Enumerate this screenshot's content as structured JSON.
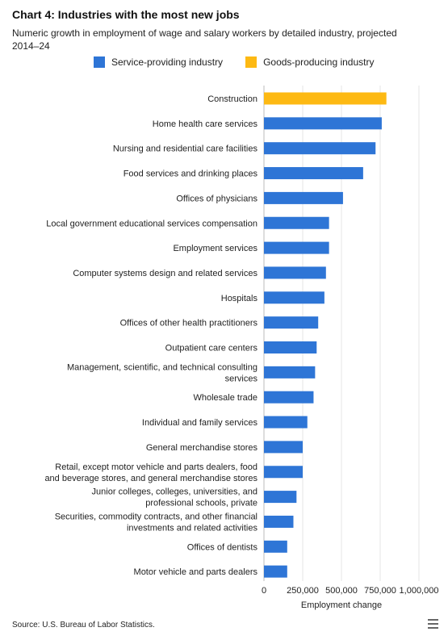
{
  "colors": {
    "service": "#2E75D6",
    "goods": "#FDB913",
    "grid": "#e6e6e6",
    "axis": "#bbbbbb",
    "text": "#222222"
  },
  "legend": {
    "service_label": "Service-providing industry",
    "goods_label": "Goods-producing industry"
  },
  "source": "Source: U.S. Bureau of Labor Statistics.",
  "menu_icon": "hamburger-menu-icon",
  "chart_data": {
    "type": "bar",
    "orientation": "horizontal",
    "title": "Chart 4: Industries with the most new jobs",
    "subtitle": "Numeric growth in employment of wage and salary workers by detailed industry, projected 2014–24",
    "xlabel": "Employment change",
    "ylabel": "",
    "xlim": [
      0,
      1000000
    ],
    "xticks": [
      0,
      250000,
      500000,
      750000,
      1000000
    ],
    "xtick_labels": [
      "0",
      "250,000",
      "500,000",
      "750,000",
      "1,000,000"
    ],
    "grid": "vertical",
    "legend_position": "top",
    "series": [
      {
        "name": "Service-providing industry"
      },
      {
        "name": "Goods-producing industry"
      }
    ],
    "categories": [
      [
        "Construction"
      ],
      [
        "Home health care services"
      ],
      [
        "Nursing and residential care facilities"
      ],
      [
        "Food services and drinking places"
      ],
      [
        "Offices of physicians"
      ],
      [
        "Local government educational services compensation"
      ],
      [
        "Employment services"
      ],
      [
        "Computer systems design and related services"
      ],
      [
        "Hospitals"
      ],
      [
        "Offices of other health practitioners"
      ],
      [
        "Outpatient care centers"
      ],
      [
        "Management, scientific, and technical consulting",
        "services"
      ],
      [
        "Wholesale trade"
      ],
      [
        "Individual and family services"
      ],
      [
        "General merchandise stores"
      ],
      [
        "Retail, except motor vehicle and parts dealers, food",
        "and beverage stores, and general merchandise stores"
      ],
      [
        "Junior colleges, colleges, universities, and",
        "professional schools, private"
      ],
      [
        "Securities, commodity contracts, and other financial",
        "investments and related activities"
      ],
      [
        "Offices of dentists"
      ],
      [
        "Motor vehicle and parts dealers"
      ]
    ],
    "values": [
      790000,
      760000,
      720000,
      640000,
      510000,
      420000,
      420000,
      400000,
      390000,
      350000,
      340000,
      330000,
      320000,
      280000,
      250000,
      250000,
      210000,
      190000,
      150000,
      150000
    ],
    "bar_series": [
      "Goods-producing industry",
      "Service-providing industry",
      "Service-providing industry",
      "Service-providing industry",
      "Service-providing industry",
      "Service-providing industry",
      "Service-providing industry",
      "Service-providing industry",
      "Service-providing industry",
      "Service-providing industry",
      "Service-providing industry",
      "Service-providing industry",
      "Service-providing industry",
      "Service-providing industry",
      "Service-providing industry",
      "Service-providing industry",
      "Service-providing industry",
      "Service-providing industry",
      "Service-providing industry",
      "Service-providing industry"
    ]
  }
}
